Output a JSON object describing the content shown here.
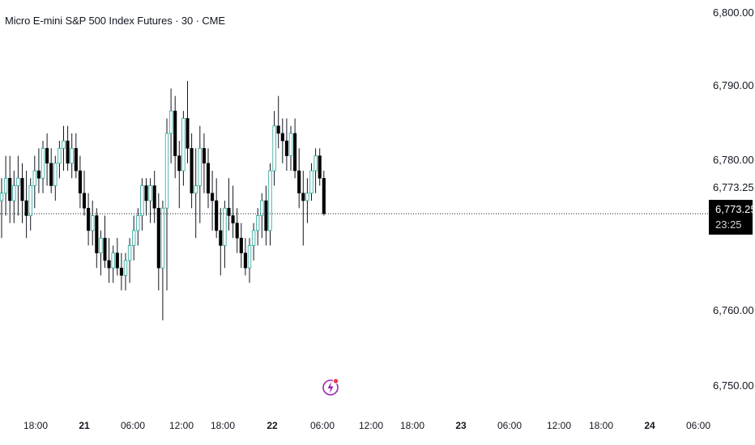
{
  "header": {
    "title": "Micro E-mini S&P 500 Index Futures · 30 · CME"
  },
  "price_axis": {
    "ticks": [
      "6,800.00",
      "6,790.00",
      "6,780.00",
      "6,773.25",
      "6,760.00",
      "6,750.00"
    ]
  },
  "time_axis": {
    "ticks": [
      "18:00",
      "21",
      "06:00",
      "12:00",
      "18:00",
      "22",
      "06:00",
      "12:00",
      "18:00",
      "23",
      "06:00",
      "12:00",
      "18:00",
      "24",
      "06:00"
    ]
  },
  "last_price": {
    "price": "6,773.25",
    "countdown": "23:25"
  },
  "colors": {
    "up": "#ffffff",
    "up_border": "#000000",
    "up_accent": "#26a69a",
    "down": "#000000",
    "wick": "#131722",
    "event": "#9c27b0",
    "event_dot": "#f23645"
  },
  "icons": {
    "event_marker": "lightning-bolt-icon"
  },
  "chart_data": {
    "type": "candlestick",
    "title": "Micro E-mini S&P 500 Index Futures · 30 · CME",
    "ylim": [
      6745,
      6802
    ],
    "last_price": 6773.25,
    "candles": [
      [
        6775,
        6778,
        6770,
        6776
      ],
      [
        6776,
        6781,
        6773,
        6778
      ],
      [
        6778,
        6781,
        6772,
        6775
      ],
      [
        6775,
        6779,
        6772,
        6777
      ],
      [
        6777,
        6781,
        6773,
        6778
      ],
      [
        6778,
        6780,
        6772,
        6775
      ],
      [
        6775,
        6779,
        6770,
        6773
      ],
      [
        6773,
        6778,
        6771,
        6777
      ],
      [
        6777,
        6781,
        6774,
        6779
      ],
      [
        6779,
        6782,
        6776,
        6778
      ],
      [
        6778,
        6783,
        6776,
        6782
      ],
      [
        6782,
        6784,
        6777,
        6780
      ],
      [
        6780,
        6782,
        6776,
        6777
      ],
      [
        6777,
        6781,
        6775,
        6780
      ],
      [
        6780,
        6783,
        6778,
        6782
      ],
      [
        6782,
        6785,
        6779,
        6783
      ],
      [
        6783,
        6785,
        6779,
        6780
      ],
      [
        6780,
        6784,
        6778,
        6782
      ],
      [
        6782,
        6784,
        6778,
        6779
      ],
      [
        6779,
        6781,
        6774,
        6776
      ],
      [
        6776,
        6779,
        6773,
        6774
      ],
      [
        6774,
        6776,
        6769,
        6771
      ],
      [
        6771,
        6775,
        6769,
        6773
      ],
      [
        6773,
        6774,
        6766,
        6768
      ],
      [
        6768,
        6771,
        6765,
        6770
      ],
      [
        6770,
        6773,
        6766,
        6767
      ],
      [
        6767,
        6770,
        6764,
        6766
      ],
      [
        6766,
        6769,
        6764,
        6768
      ],
      [
        6768,
        6770,
        6765,
        6766
      ],
      [
        6766,
        6768,
        6763,
        6765
      ],
      [
        6765,
        6768,
        6763,
        6767
      ],
      [
        6767,
        6770,
        6764,
        6769
      ],
      [
        6769,
        6773,
        6767,
        6771
      ],
      [
        6771,
        6774,
        6769,
        6773
      ],
      [
        6773,
        6778,
        6771,
        6777
      ],
      [
        6777,
        6778,
        6773,
        6775
      ],
      [
        6775,
        6778,
        6772,
        6777
      ],
      [
        6777,
        6779,
        6772,
        6774
      ],
      [
        6774,
        6776,
        6763,
        6766
      ],
      [
        6766,
        6775,
        6759,
        6774
      ],
      [
        6774,
        6786,
        6763,
        6784
      ],
      [
        6784,
        6790,
        6780,
        6787
      ],
      [
        6787,
        6789,
        6778,
        6781
      ],
      [
        6781,
        6783,
        6774,
        6779
      ],
      [
        6779,
        6787,
        6777,
        6786
      ],
      [
        6786,
        6791,
        6780,
        6782
      ],
      [
        6782,
        6784,
        6774,
        6776
      ],
      [
        6776,
        6782,
        6770,
        6777
      ],
      [
        6777,
        6785,
        6772,
        6782
      ],
      [
        6782,
        6784,
        6776,
        6780
      ],
      [
        6780,
        6782,
        6774,
        6776
      ],
      [
        6776,
        6779,
        6771,
        6775
      ],
      [
        6775,
        6778,
        6770,
        6771
      ],
      [
        6771,
        6774,
        6765,
        6769
      ],
      [
        6769,
        6775,
        6766,
        6774
      ],
      [
        6774,
        6778,
        6771,
        6773
      ],
      [
        6773,
        6777,
        6770,
        6772
      ],
      [
        6772,
        6774,
        6768,
        6770
      ],
      [
        6770,
        6772,
        6766,
        6768
      ],
      [
        6768,
        6770,
        6765,
        6766
      ],
      [
        6766,
        6770,
        6764,
        6769
      ],
      [
        6769,
        6772,
        6767,
        6771
      ],
      [
        6771,
        6774,
        6769,
        6773
      ],
      [
        6773,
        6776,
        6770,
        6775
      ],
      [
        6775,
        6777,
        6769,
        6771
      ],
      [
        6771,
        6780,
        6769,
        6779
      ],
      [
        6779,
        6787,
        6777,
        6785
      ],
      [
        6785,
        6789,
        6782,
        6784
      ],
      [
        6784,
        6786,
        6780,
        6783
      ],
      [
        6783,
        6786,
        6779,
        6781
      ],
      [
        6781,
        6785,
        6779,
        6784
      ],
      [
        6784,
        6786,
        6778,
        6779
      ],
      [
        6779,
        6782,
        6774,
        6776
      ],
      [
        6776,
        6779,
        6769,
        6775
      ],
      [
        6775,
        6778,
        6772,
        6776
      ],
      [
        6776,
        6780,
        6775,
        6779
      ],
      [
        6779,
        6782,
        6776,
        6781
      ],
      [
        6781,
        6782,
        6777,
        6778
      ],
      [
        6778,
        6779,
        6773,
        6773.25
      ]
    ]
  }
}
